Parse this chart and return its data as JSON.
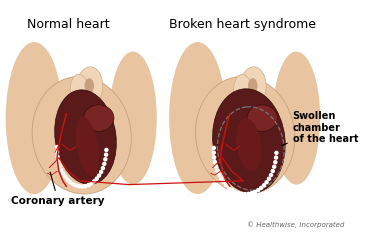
{
  "bg_color": "#ffffff",
  "title_left": "Normal heart",
  "title_right": "Broken heart syndrome",
  "label_coronary": "Coronary artery",
  "label_swollen": "Swollen\nchamber\nof the heart",
  "label_copyright": "© Healthwise, Incorporated",
  "skin_light": "#f0d5b8",
  "skin_mid": "#e8c4a0",
  "skin_dark": "#d4a882",
  "skin_shadow": "#c9a07a",
  "heart_dark": "#5a1a1a",
  "heart_mid": "#7a2525",
  "heart_chamber": "#8b3030",
  "heart_inner": "#3a0808",
  "artery_color": "#cc1111",
  "white_dot": "#ffffff",
  "swollen_outline": "#777777",
  "title_fontsize": 9,
  "label_fontsize": 7.5,
  "annot_fontsize": 7.0,
  "copyright_fontsize": 5.0
}
